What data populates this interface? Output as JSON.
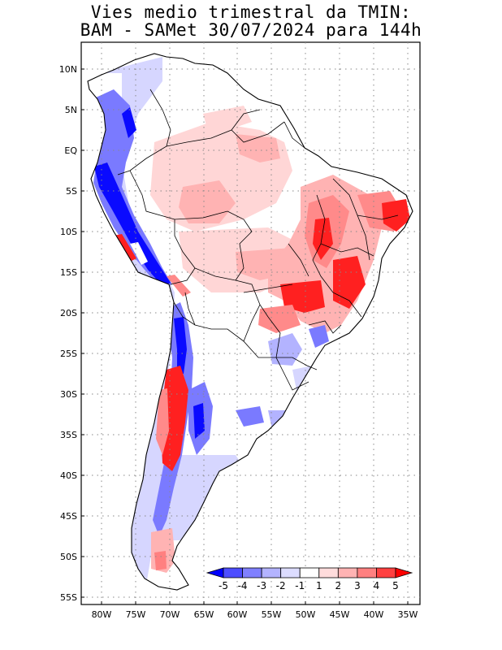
{
  "title": {
    "line1": "Vies medio trimestral da TMIN:",
    "line2": "BAM - SAMet 30/07/2024  para 144h"
  },
  "axes": {
    "lat_ticks": [
      "10N",
      "5N",
      "EQ",
      "5S",
      "10S",
      "15S",
      "20S",
      "25S",
      "30S",
      "35S",
      "40S",
      "45S",
      "50S",
      "55S"
    ],
    "lon_ticks": [
      "80W",
      "75W",
      "70W",
      "65W",
      "60W",
      "55W",
      "50W",
      "45W",
      "40W",
      "35W"
    ]
  },
  "legend": {
    "labels": [
      "-5",
      "-4",
      "-3",
      "-2",
      "-1",
      "1",
      "2",
      "3",
      "4",
      "5"
    ],
    "colors": [
      "#0000ff",
      "#4d4dff",
      "#8080ff",
      "#b3b3ff",
      "#dcdcff",
      "#ffffff",
      "#ffdcdc",
      "#ffb3b3",
      "#ff8080",
      "#ff4040",
      "#ff0000"
    ]
  },
  "palette": {
    "strong_cold": "#0a0aff",
    "cold": "#7a7aff",
    "light_cold": "#d6d6ff",
    "light_warm": "#ffd6d6",
    "warm": "#ff8a8a",
    "strong_warm": "#ff2020"
  }
}
